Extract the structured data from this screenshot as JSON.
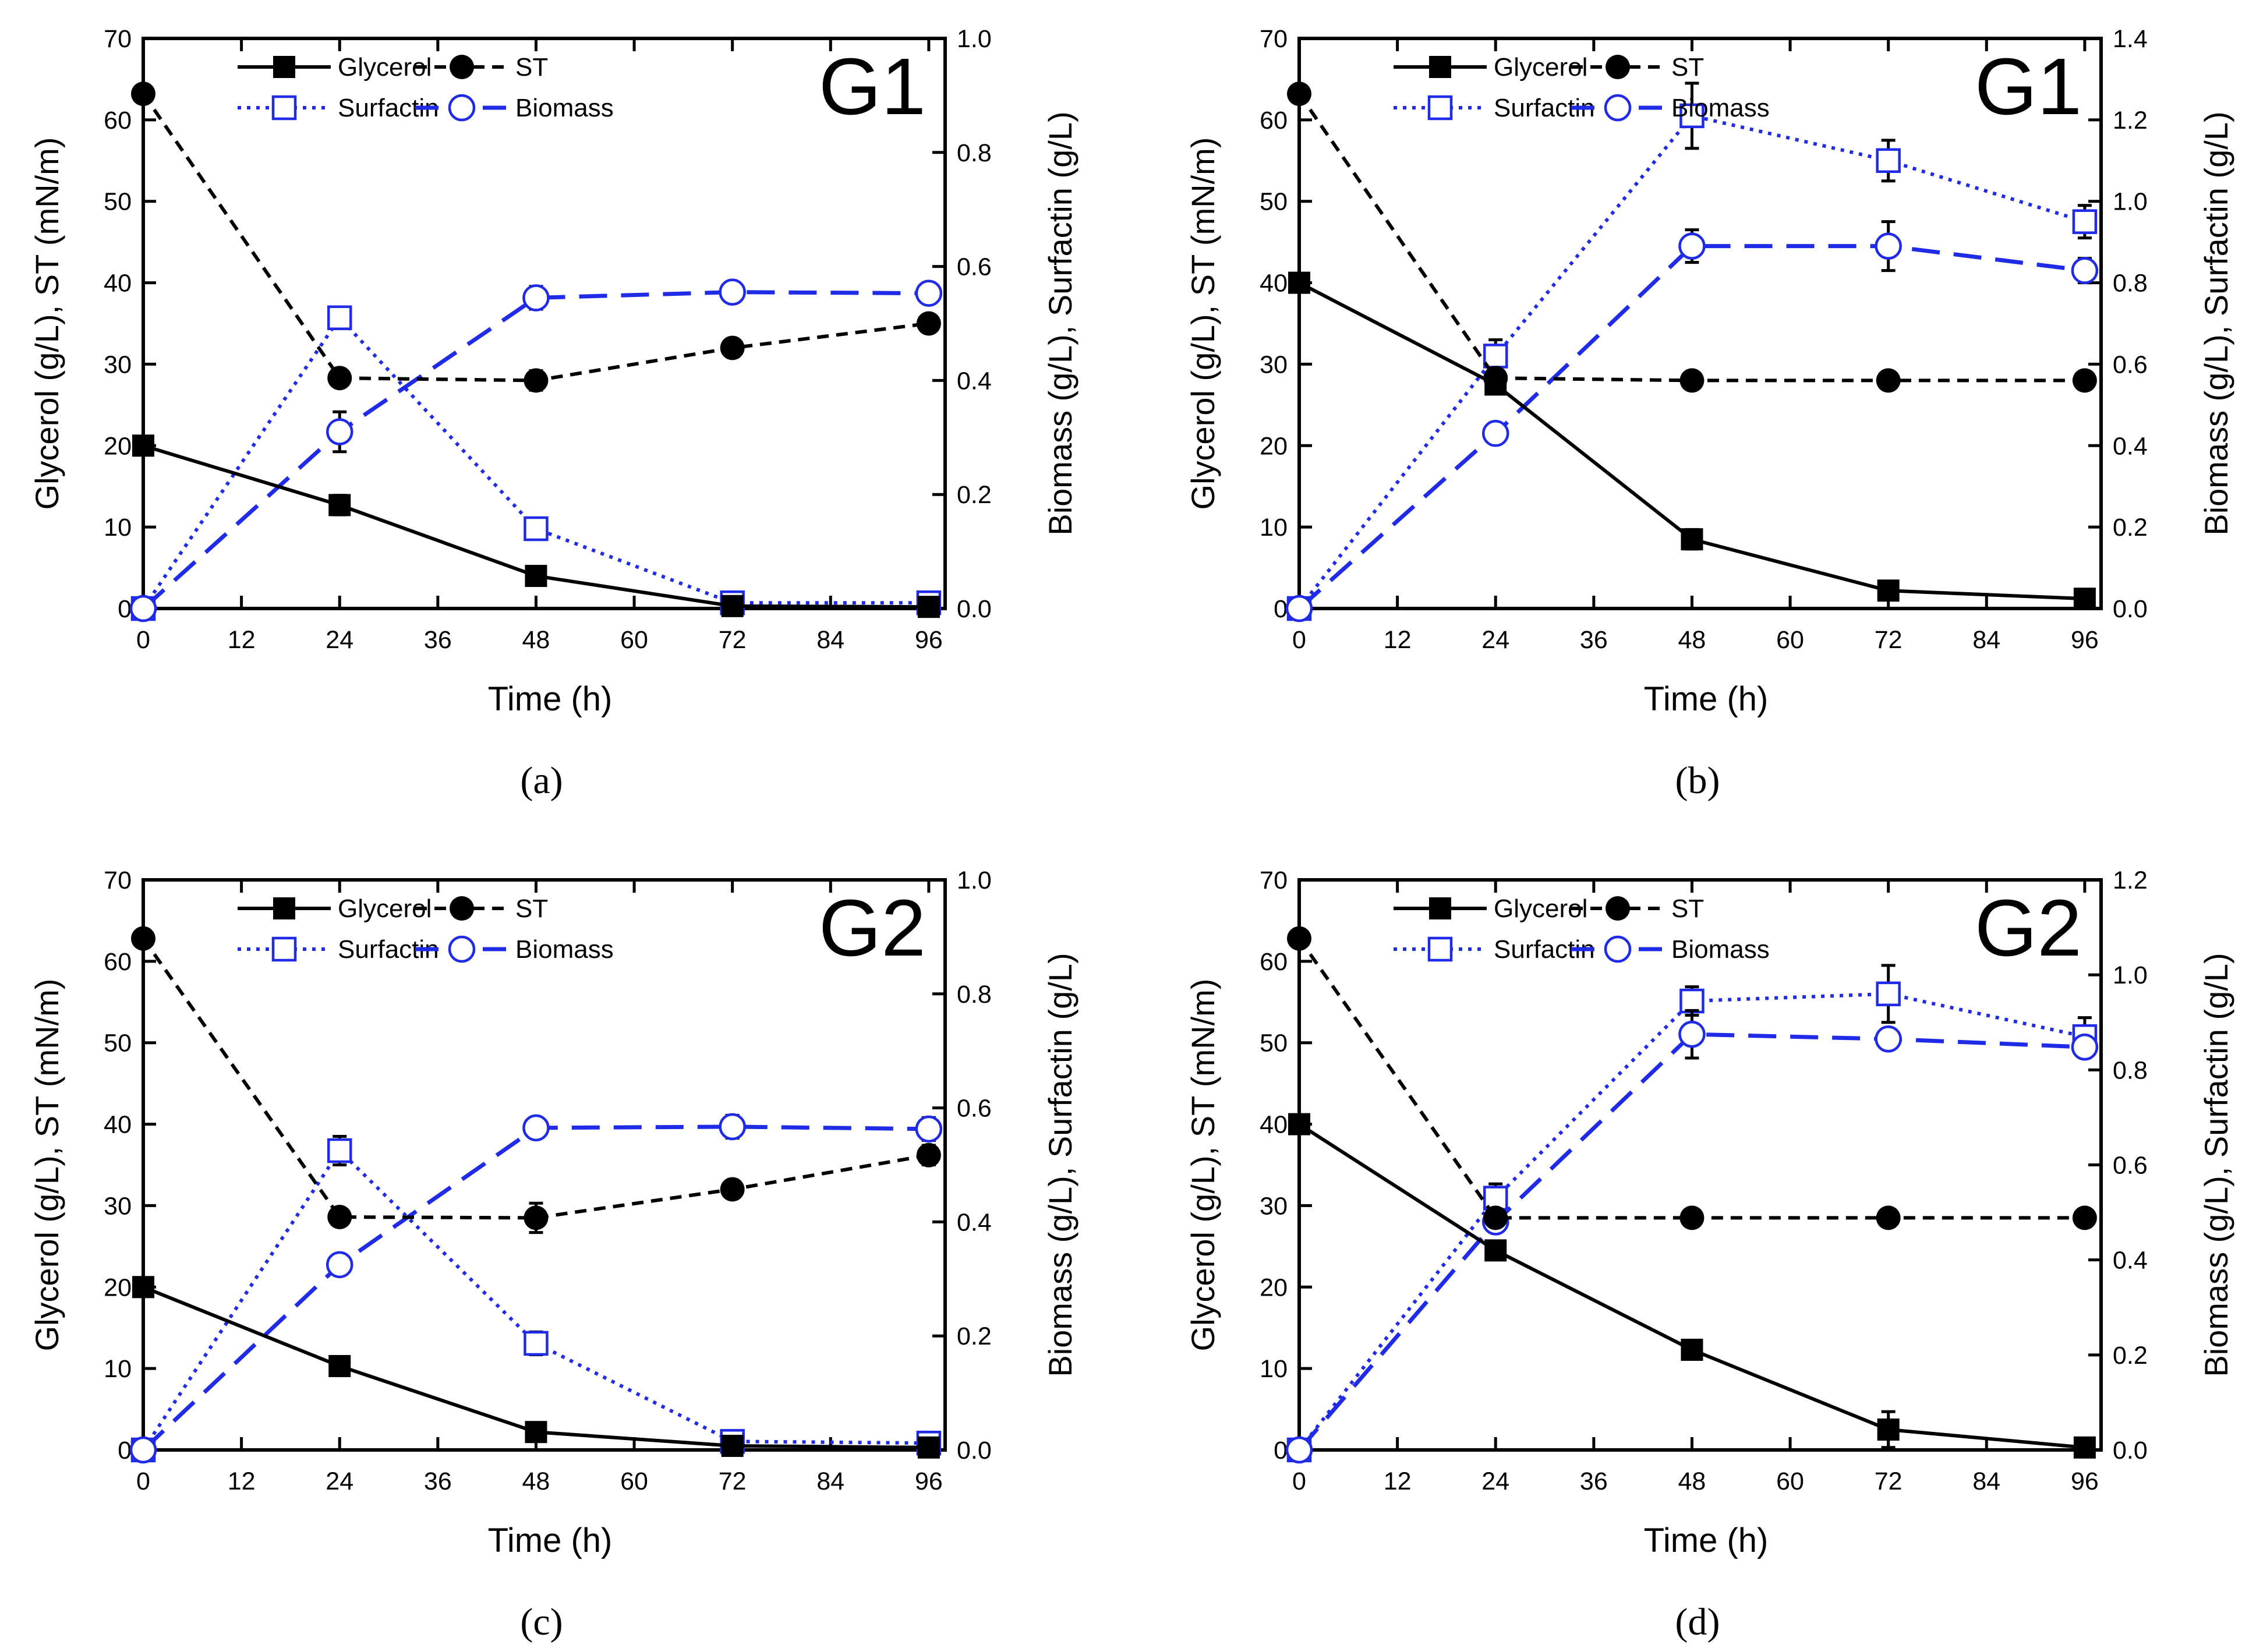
{
  "figure": {
    "panel_labels": [
      "(a)",
      "(b)",
      "(c)",
      "(d)"
    ],
    "colors": {
      "axis": "#000000",
      "blue": "#1F2BE6",
      "black": "#000000",
      "background": "#FFFFFF"
    },
    "legend": {
      "glycerol": "Glycerol",
      "st": "ST",
      "surfactin": "Surfactin",
      "biomass": "Biomass"
    }
  },
  "chart_data": [
    {
      "id": "a",
      "type": "line",
      "panel_label": "(a)",
      "tag": "G1",
      "xlabel": "Time (h)",
      "ylabel_left": "Glycerol (g/L), ST (mN/m)",
      "ylabel_right": "Biomass (g/L), Surfactin (g/L)",
      "xlim": [
        0,
        98
      ],
      "xticks": [
        0,
        12,
        24,
        36,
        48,
        60,
        72,
        84,
        96
      ],
      "ylim_left": [
        0,
        70
      ],
      "yticks_left": [
        0,
        10,
        20,
        30,
        40,
        50,
        60,
        70
      ],
      "ylim_right": [
        0,
        1.0
      ],
      "yticks_right": [
        "0.0",
        "0.2",
        "0.4",
        "0.6",
        "0.8",
        "1.0"
      ],
      "legend_position": "top-center",
      "series": [
        {
          "name": "Glycerol",
          "axis": "left",
          "x": [
            0,
            24,
            48,
            72,
            96
          ],
          "values": [
            20,
            12.7,
            4,
            0.3,
            0.2
          ],
          "errors": [
            0,
            1.2,
            1,
            0,
            0
          ]
        },
        {
          "name": "ST",
          "axis": "left",
          "x": [
            0,
            24,
            48,
            72,
            96
          ],
          "values": [
            63.2,
            28.3,
            28,
            32,
            35
          ],
          "errors": [
            0,
            1,
            1.2,
            1,
            1
          ]
        },
        {
          "name": "Surfactin",
          "axis": "right",
          "x": [
            0,
            24,
            48,
            72,
            96
          ],
          "values": [
            0.0,
            0.51,
            0.14,
            0.01,
            0.01
          ],
          "errors": [
            0,
            0,
            0,
            0,
            0
          ]
        },
        {
          "name": "Biomass",
          "axis": "right",
          "x": [
            0,
            24,
            48,
            72,
            96
          ],
          "values": [
            0.0,
            0.31,
            0.545,
            0.555,
            0.553
          ],
          "errors": [
            0,
            0.035,
            0.02,
            0.01,
            0.01
          ]
        }
      ]
    },
    {
      "id": "b",
      "type": "line",
      "panel_label": "(b)",
      "tag": "G1",
      "xlabel": "Time (h)",
      "ylabel_left": "Glycerol (g/L), ST (mN/m)",
      "ylabel_right": "Biomass (g/L), Surfactin (g/L)",
      "xlim": [
        0,
        98
      ],
      "xticks": [
        0,
        12,
        24,
        36,
        48,
        60,
        72,
        84,
        96
      ],
      "ylim_left": [
        0,
        70
      ],
      "yticks_left": [
        0,
        10,
        20,
        30,
        40,
        50,
        60,
        70
      ],
      "ylim_right": [
        0,
        1.4
      ],
      "yticks_right": [
        "0.0",
        "0.2",
        "0.4",
        "0.6",
        "0.8",
        "1.0",
        "1.2",
        "1.4"
      ],
      "legend_position": "top-center",
      "series": [
        {
          "name": "Glycerol",
          "axis": "left",
          "x": [
            0,
            24,
            48,
            72,
            96
          ],
          "values": [
            40,
            27.5,
            8.5,
            2.2,
            1.2
          ],
          "errors": [
            0,
            1,
            1.2,
            0.8,
            0.8
          ]
        },
        {
          "name": "ST",
          "axis": "left",
          "x": [
            0,
            24,
            48,
            72,
            96
          ],
          "values": [
            63.2,
            28.3,
            28,
            28,
            28
          ],
          "errors": [
            0,
            1,
            0,
            0,
            0
          ]
        },
        {
          "name": "Surfactin",
          "axis": "right",
          "x": [
            0,
            24,
            48,
            72,
            96
          ],
          "values": [
            0.0,
            0.62,
            1.21,
            1.1,
            0.95
          ],
          "errors": [
            0,
            0.04,
            0.08,
            0.05,
            0.04
          ]
        },
        {
          "name": "Biomass",
          "axis": "right",
          "x": [
            0,
            24,
            48,
            72,
            96
          ],
          "values": [
            0.0,
            0.43,
            0.89,
            0.89,
            0.83
          ],
          "errors": [
            0,
            0.02,
            0.04,
            0.06,
            0.03
          ]
        }
      ]
    },
    {
      "id": "c",
      "type": "line",
      "panel_label": "(c)",
      "tag": "G2",
      "xlabel": "Time (h)",
      "ylabel_left": "Glycerol (g/L), ST (mN/m)",
      "ylabel_right": "Biomass (g/L), Surfactin (g/L)",
      "xlim": [
        0,
        98
      ],
      "xticks": [
        0,
        12,
        24,
        36,
        48,
        60,
        72,
        84,
        96
      ],
      "ylim_left": [
        0,
        70
      ],
      "yticks_left": [
        0,
        10,
        20,
        30,
        40,
        50,
        60,
        70
      ],
      "ylim_right": [
        0,
        1.0
      ],
      "yticks_right": [
        "0.0",
        "0.2",
        "0.4",
        "0.6",
        "0.8",
        "1.0"
      ],
      "legend_position": "top-center",
      "series": [
        {
          "name": "Glycerol",
          "axis": "left",
          "x": [
            0,
            24,
            48,
            72,
            96
          ],
          "values": [
            20,
            10.3,
            2.2,
            0.5,
            0.3
          ],
          "errors": [
            0,
            0.8,
            0.8,
            0,
            0
          ]
        },
        {
          "name": "ST",
          "axis": "left",
          "x": [
            0,
            24,
            48,
            72,
            96
          ],
          "values": [
            62.8,
            28.6,
            28.5,
            32,
            36.2
          ],
          "errors": [
            0,
            1,
            1.8,
            1,
            1.2
          ]
        },
        {
          "name": "Surfactin",
          "axis": "right",
          "x": [
            0,
            24,
            48,
            72,
            96
          ],
          "values": [
            0.0,
            0.525,
            0.187,
            0.015,
            0.012
          ],
          "errors": [
            0,
            0.025,
            0.02,
            0,
            0
          ]
        },
        {
          "name": "Biomass",
          "axis": "right",
          "x": [
            0,
            24,
            48,
            72,
            96
          ],
          "values": [
            0.0,
            0.325,
            0.565,
            0.567,
            0.563
          ],
          "errors": [
            0,
            0.015,
            0.015,
            0.02,
            0.02
          ]
        }
      ]
    },
    {
      "id": "d",
      "type": "line",
      "panel_label": "(d)",
      "tag": "G2",
      "xlabel": "Time (h)",
      "ylabel_left": "Glycerol (g/L), ST (mN/m)",
      "ylabel_right": "Biomass (g/L), Surfactin (g/L)",
      "xlim": [
        0,
        98
      ],
      "xticks": [
        0,
        12,
        24,
        36,
        48,
        60,
        72,
        84,
        96
      ],
      "ylim_left": [
        0,
        70
      ],
      "yticks_left": [
        0,
        10,
        20,
        30,
        40,
        50,
        60,
        70
      ],
      "ylim_right": [
        0,
        1.2
      ],
      "yticks_right": [
        "0.0",
        "0.2",
        "0.4",
        "0.6",
        "0.8",
        "1.0",
        "1.2"
      ],
      "legend_position": "top-center",
      "series": [
        {
          "name": "Glycerol",
          "axis": "left",
          "x": [
            0,
            24,
            48,
            72,
            96
          ],
          "values": [
            40,
            24.5,
            12.3,
            2.5,
            0.3
          ],
          "errors": [
            0,
            1,
            0.8,
            2.2,
            0
          ]
        },
        {
          "name": "ST",
          "axis": "left",
          "x": [
            0,
            24,
            48,
            72,
            96
          ],
          "values": [
            62.8,
            28.5,
            28.5,
            28.5,
            28.5
          ],
          "errors": [
            0,
            1,
            0,
            0,
            0
          ]
        },
        {
          "name": "Surfactin",
          "axis": "right",
          "x": [
            0,
            24,
            48,
            72,
            96
          ],
          "values": [
            0.0,
            0.53,
            0.945,
            0.96,
            0.87
          ],
          "errors": [
            0,
            0.03,
            0.03,
            0.06,
            0.04
          ]
        },
        {
          "name": "Biomass",
          "axis": "right",
          "x": [
            0,
            24,
            48,
            72,
            96
          ],
          "values": [
            0.0,
            0.48,
            0.875,
            0.865,
            0.848
          ],
          "errors": [
            0,
            0.02,
            0.05,
            0.02,
            0.02
          ]
        }
      ]
    }
  ]
}
